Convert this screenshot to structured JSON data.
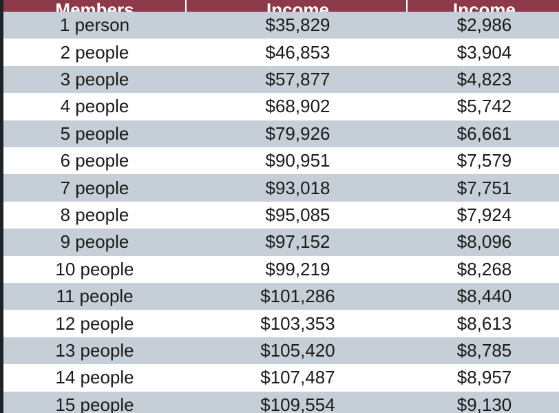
{
  "table": {
    "header": [
      "Members",
      "Income",
      "Income"
    ],
    "rows": [
      [
        "1 person",
        "$35,829",
        "$2,986"
      ],
      [
        "2 people",
        "$46,853",
        "$3,904"
      ],
      [
        "3 people",
        "$57,877",
        "$4,823"
      ],
      [
        "4 people",
        "$68,902",
        "$5,742"
      ],
      [
        "5 people",
        "$79,926",
        "$6,661"
      ],
      [
        "6 people",
        "$90,951",
        "$7,579"
      ],
      [
        "7 people",
        "$93,018",
        "$7,751"
      ],
      [
        "8 people",
        "$95,085",
        "$7,924"
      ],
      [
        "9 people",
        "$97,152",
        "$8,096"
      ],
      [
        "10 people",
        "$99,219",
        "$8,268"
      ],
      [
        "11 people",
        "$101,286",
        "$8,440"
      ],
      [
        "12 people",
        "$103,353",
        "$8,613"
      ],
      [
        "13 people",
        "$105,420",
        "$8,785"
      ],
      [
        "14 people",
        "$107,487",
        "$8,957"
      ],
      [
        "15 people",
        "$109,554",
        "$9,130"
      ]
    ]
  }
}
